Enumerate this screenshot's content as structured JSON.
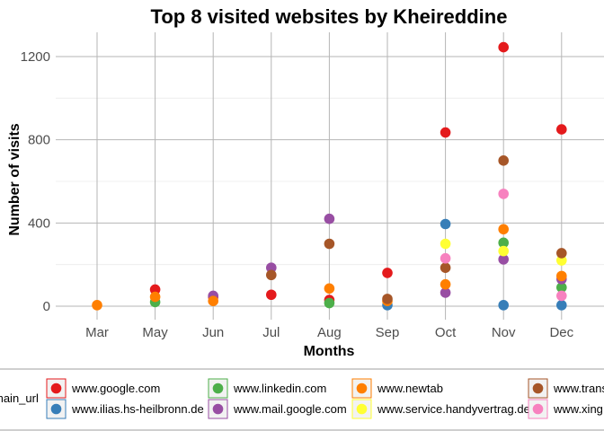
{
  "chart_data": {
    "type": "scatter",
    "title": "Top 8 visited websites by Kheireddine",
    "xlabel": "Months",
    "ylabel": "Number of visits",
    "categories": [
      "Mar",
      "May",
      "Jun",
      "Jul",
      "Aug",
      "Sep",
      "Oct",
      "Nov",
      "Dec"
    ],
    "ylim": [
      0,
      1300
    ],
    "yticks": [
      0,
      400,
      800,
      1200
    ],
    "grid": true,
    "legend_title": "main_url",
    "legend_position": "bottom",
    "series": [
      {
        "name": "www.google.com",
        "color": "#e41a1c",
        "values": [
          null,
          80,
          45,
          55,
          30,
          160,
          835,
          1245,
          850
        ]
      },
      {
        "name": "www.ilias.hs-heilbronn.de",
        "color": "#377eb8",
        "values": [
          null,
          null,
          null,
          null,
          null,
          5,
          395,
          5,
          5
        ]
      },
      {
        "name": "www.linkedin.com",
        "color": "#4daf4a",
        "values": [
          null,
          20,
          null,
          null,
          15,
          null,
          null,
          305,
          90
        ]
      },
      {
        "name": "www.mail.google.com",
        "color": "#984ea3",
        "values": [
          null,
          null,
          50,
          185,
          420,
          null,
          65,
          225,
          130
        ]
      },
      {
        "name": "www.newtab",
        "color": "#ff7f00",
        "values": [
          5,
          45,
          25,
          null,
          85,
          25,
          105,
          370,
          145
        ]
      },
      {
        "name": "www.service.handyvertrag.de",
        "color": "#ffff33",
        "values": [
          null,
          null,
          null,
          null,
          null,
          null,
          300,
          265,
          220
        ]
      },
      {
        "name": "www.transfermarkt.de",
        "color": "#a65628",
        "values": [
          null,
          null,
          null,
          150,
          300,
          35,
          185,
          700,
          255
        ]
      },
      {
        "name": "www.xing.com",
        "color": "#f781bf",
        "values": [
          null,
          null,
          null,
          null,
          null,
          null,
          230,
          540,
          50
        ]
      }
    ]
  }
}
